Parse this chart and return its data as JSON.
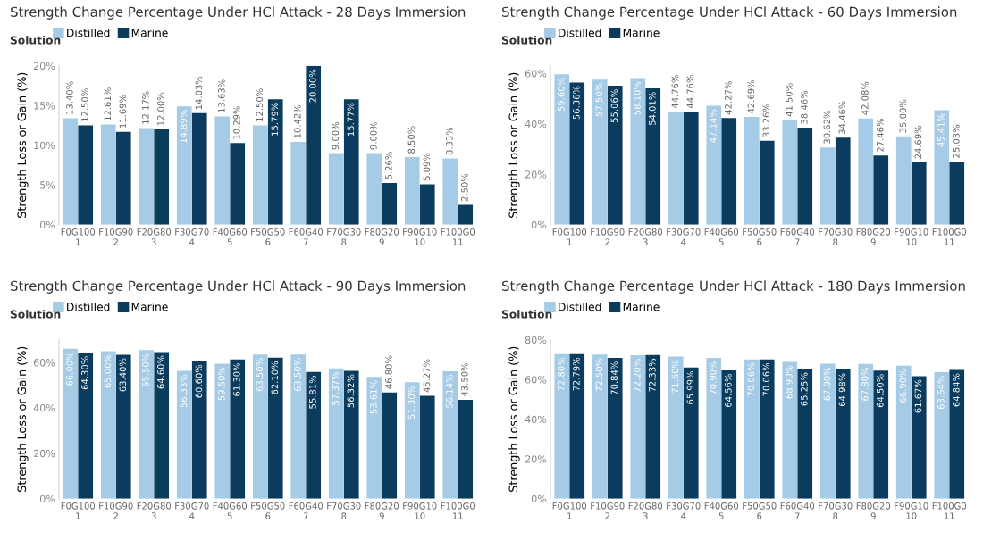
{
  "chart_data": [
    {
      "type": "bar",
      "title": "Strength Change Percentage Under HCl Attack - 28 Days Immersion",
      "ylabel": "Strength Loss or Gain (%)",
      "legend_title": "Solution",
      "legend": "top left",
      "categories": [
        "F0G100\n1",
        "F10G90\n2",
        "F20G80\n3",
        "F30G70\n4",
        "F40G60\n5",
        "F50G50\n6",
        "F60G40\n7",
        "F70G30\n8",
        "F80G20\n9",
        "F90G10\n10",
        "F100G0\n11"
      ],
      "series": [
        {
          "name": "Distilled",
          "color": "#a6cbe6",
          "values": [
            13.4,
            12.61,
            12.17,
            14.89,
            13.63,
            12.5,
            10.42,
            9.0,
            9.0,
            8.5,
            8.33
          ],
          "value_labels": [
            "13.40%",
            "12.61%",
            "12.17%",
            "14.89%",
            "13.63%",
            "12.50%",
            "10.42%",
            "9.00%",
            "9.00%",
            "8.50%",
            "8.33%"
          ]
        },
        {
          "name": "Marine",
          "color": "#0b3c5d",
          "values": [
            12.5,
            11.69,
            12.0,
            14.03,
            10.29,
            15.79,
            20.0,
            15.77,
            5.26,
            5.09,
            2.5
          ],
          "value_labels": [
            "12.50%",
            "11.69%",
            "12.00%",
            "14.03%",
            "10.29%",
            "15.79%",
            "20.00%",
            "15.77%",
            "5.26%",
            "5.09%",
            "2.50%"
          ]
        }
      ],
      "ylim": [
        0,
        20
      ],
      "yticks": [
        {
          "value": 0,
          "label": "0%"
        },
        {
          "value": 5,
          "label": "5%"
        },
        {
          "value": 10,
          "label": "10%"
        },
        {
          "value": 15,
          "label": "15%"
        },
        {
          "value": 20,
          "label": "20%"
        }
      ]
    },
    {
      "type": "bar",
      "title": "Strength Change Percentage Under HCl Attack - 60 Days Immersion",
      "ylabel": "Strength Loss or Gain (%)",
      "legend_title": "Solution",
      "legend": "top left",
      "categories": [
        "F0G100\n1",
        "F10G90\n2",
        "F20G80\n3",
        "F30G70\n4",
        "F40G60\n5",
        "F50G50\n6",
        "F60G40\n7",
        "F70G30\n8",
        "F80G20\n9",
        "F90G10\n10",
        "F100G0\n11"
      ],
      "series": [
        {
          "name": "Distilled",
          "color": "#a6cbe6",
          "values": [
            59.6,
            57.5,
            58.1,
            44.76,
            47.14,
            42.69,
            41.5,
            30.62,
            42.08,
            35.0,
            45.41
          ],
          "value_labels": [
            "59.60%",
            "57.50%",
            "58.10%",
            "44.76%",
            "47.14%",
            "42.69%",
            "41.50%",
            "30.62%",
            "42.08%",
            "35.00%",
            "45.41%"
          ]
        },
        {
          "name": "Marine",
          "color": "#0b3c5d",
          "values": [
            56.36,
            55.06,
            54.01,
            44.76,
            42.27,
            33.26,
            38.46,
            34.46,
            27.46,
            24.69,
            25.03
          ],
          "value_labels": [
            "56.36%",
            "55.06%",
            "54.01%",
            "44.76%",
            "42.27%",
            "33.26%",
            "38.46%",
            "34.46%",
            "27.46%",
            "24.69%",
            "25.03%"
          ]
        }
      ],
      "ylim": [
        0,
        63
      ],
      "yticks": [
        {
          "value": 0,
          "label": "0%"
        },
        {
          "value": 20,
          "label": "20%"
        },
        {
          "value": 40,
          "label": "40%"
        },
        {
          "value": 60,
          "label": "60%"
        }
      ]
    },
    {
      "type": "bar",
      "title": "Strength Change Percentage Under HCl Attack - 90 Days Immersion",
      "ylabel": "Strength Loss or Gain (%)",
      "legend_title": "Solution",
      "legend": "top left",
      "categories": [
        "F0G100\n1",
        "F10G90\n2",
        "F20G80\n3",
        "F30G70\n4",
        "F40G60\n5",
        "F50G50\n6",
        "F60G40\n7",
        "F70G30\n8",
        "F80G20\n9",
        "F90G10\n10",
        "F100G0\n11"
      ],
      "series": [
        {
          "name": "Distilled",
          "color": "#a6cbe6",
          "values": [
            66.0,
            65.0,
            65.5,
            56.33,
            59.5,
            63.5,
            63.5,
            57.37,
            53.61,
            51.3,
            56.14
          ],
          "value_labels": [
            "66.00%",
            "65.00%",
            "65.50%",
            "56.33%",
            "59.50%",
            "63.50%",
            "63.50%",
            "57.37%",
            "53.61%",
            "51.30%",
            "56.14%"
          ]
        },
        {
          "name": "Marine",
          "color": "#0b3c5d",
          "values": [
            64.3,
            63.4,
            64.6,
            60.6,
            61.3,
            62.1,
            55.81,
            56.32,
            46.8,
            45.27,
            43.5
          ],
          "value_labels": [
            "64.30%",
            "63.40%",
            "64.60%",
            "60.60%",
            "61.30%",
            "62.10%",
            "55.81%",
            "56.32%",
            "46.80%",
            "45.27%",
            "43.50%"
          ]
        }
      ],
      "ylim": [
        0,
        70
      ],
      "yticks": [
        {
          "value": 0,
          "label": "0%"
        },
        {
          "value": 20,
          "label": "20%"
        },
        {
          "value": 40,
          "label": "40%"
        },
        {
          "value": 60,
          "label": "60%"
        }
      ]
    },
    {
      "type": "bar",
      "title": "Strength Change Percentage Under HCl Attack - 180 Days Immersion",
      "ylabel": "Strength Loss or Gain (%)",
      "legend_title": "Solution",
      "legend": "top left",
      "categories": [
        "F0G100\n1",
        "F10G90\n2",
        "F20G80\n3",
        "F30G70\n4",
        "F40G60\n5",
        "F50G50\n6",
        "F60G40\n7",
        "F70G30\n8",
        "F80G20\n9",
        "F90G10\n10",
        "F100G0\n11"
      ],
      "series": [
        {
          "name": "Distilled",
          "color": "#a6cbe6",
          "values": [
            72.8,
            72.5,
            72.2,
            71.6,
            70.9,
            70.06,
            68.9,
            67.9,
            67.8,
            66.9,
            63.64
          ],
          "value_labels": [
            "72.80%",
            "72.50%",
            "72.20%",
            "71.60%",
            "70.90%",
            "70.06%",
            "68.90%",
            "67.90%",
            "67.80%",
            "66.90%",
            "63.64%"
          ]
        },
        {
          "name": "Marine",
          "color": "#0b3c5d",
          "values": [
            72.79,
            70.84,
            72.33,
            65.99,
            64.56,
            70.06,
            65.25,
            64.98,
            64.5,
            61.67,
            64.84
          ],
          "value_labels": [
            "72.79%",
            "70.84%",
            "72.33%",
            "65.99%",
            "64.56%",
            "70.06%",
            "65.25%",
            "64.98%",
            "64.50%",
            "61.67%",
            "64.84%"
          ]
        }
      ],
      "ylim": [
        0,
        80
      ],
      "yticks": [
        {
          "value": 0,
          "label": "0%"
        },
        {
          "value": 20,
          "label": "20%"
        },
        {
          "value": 40,
          "label": "40%"
        },
        {
          "value": 60,
          "label": "60%"
        },
        {
          "value": 80,
          "label": "80%"
        }
      ]
    }
  ]
}
